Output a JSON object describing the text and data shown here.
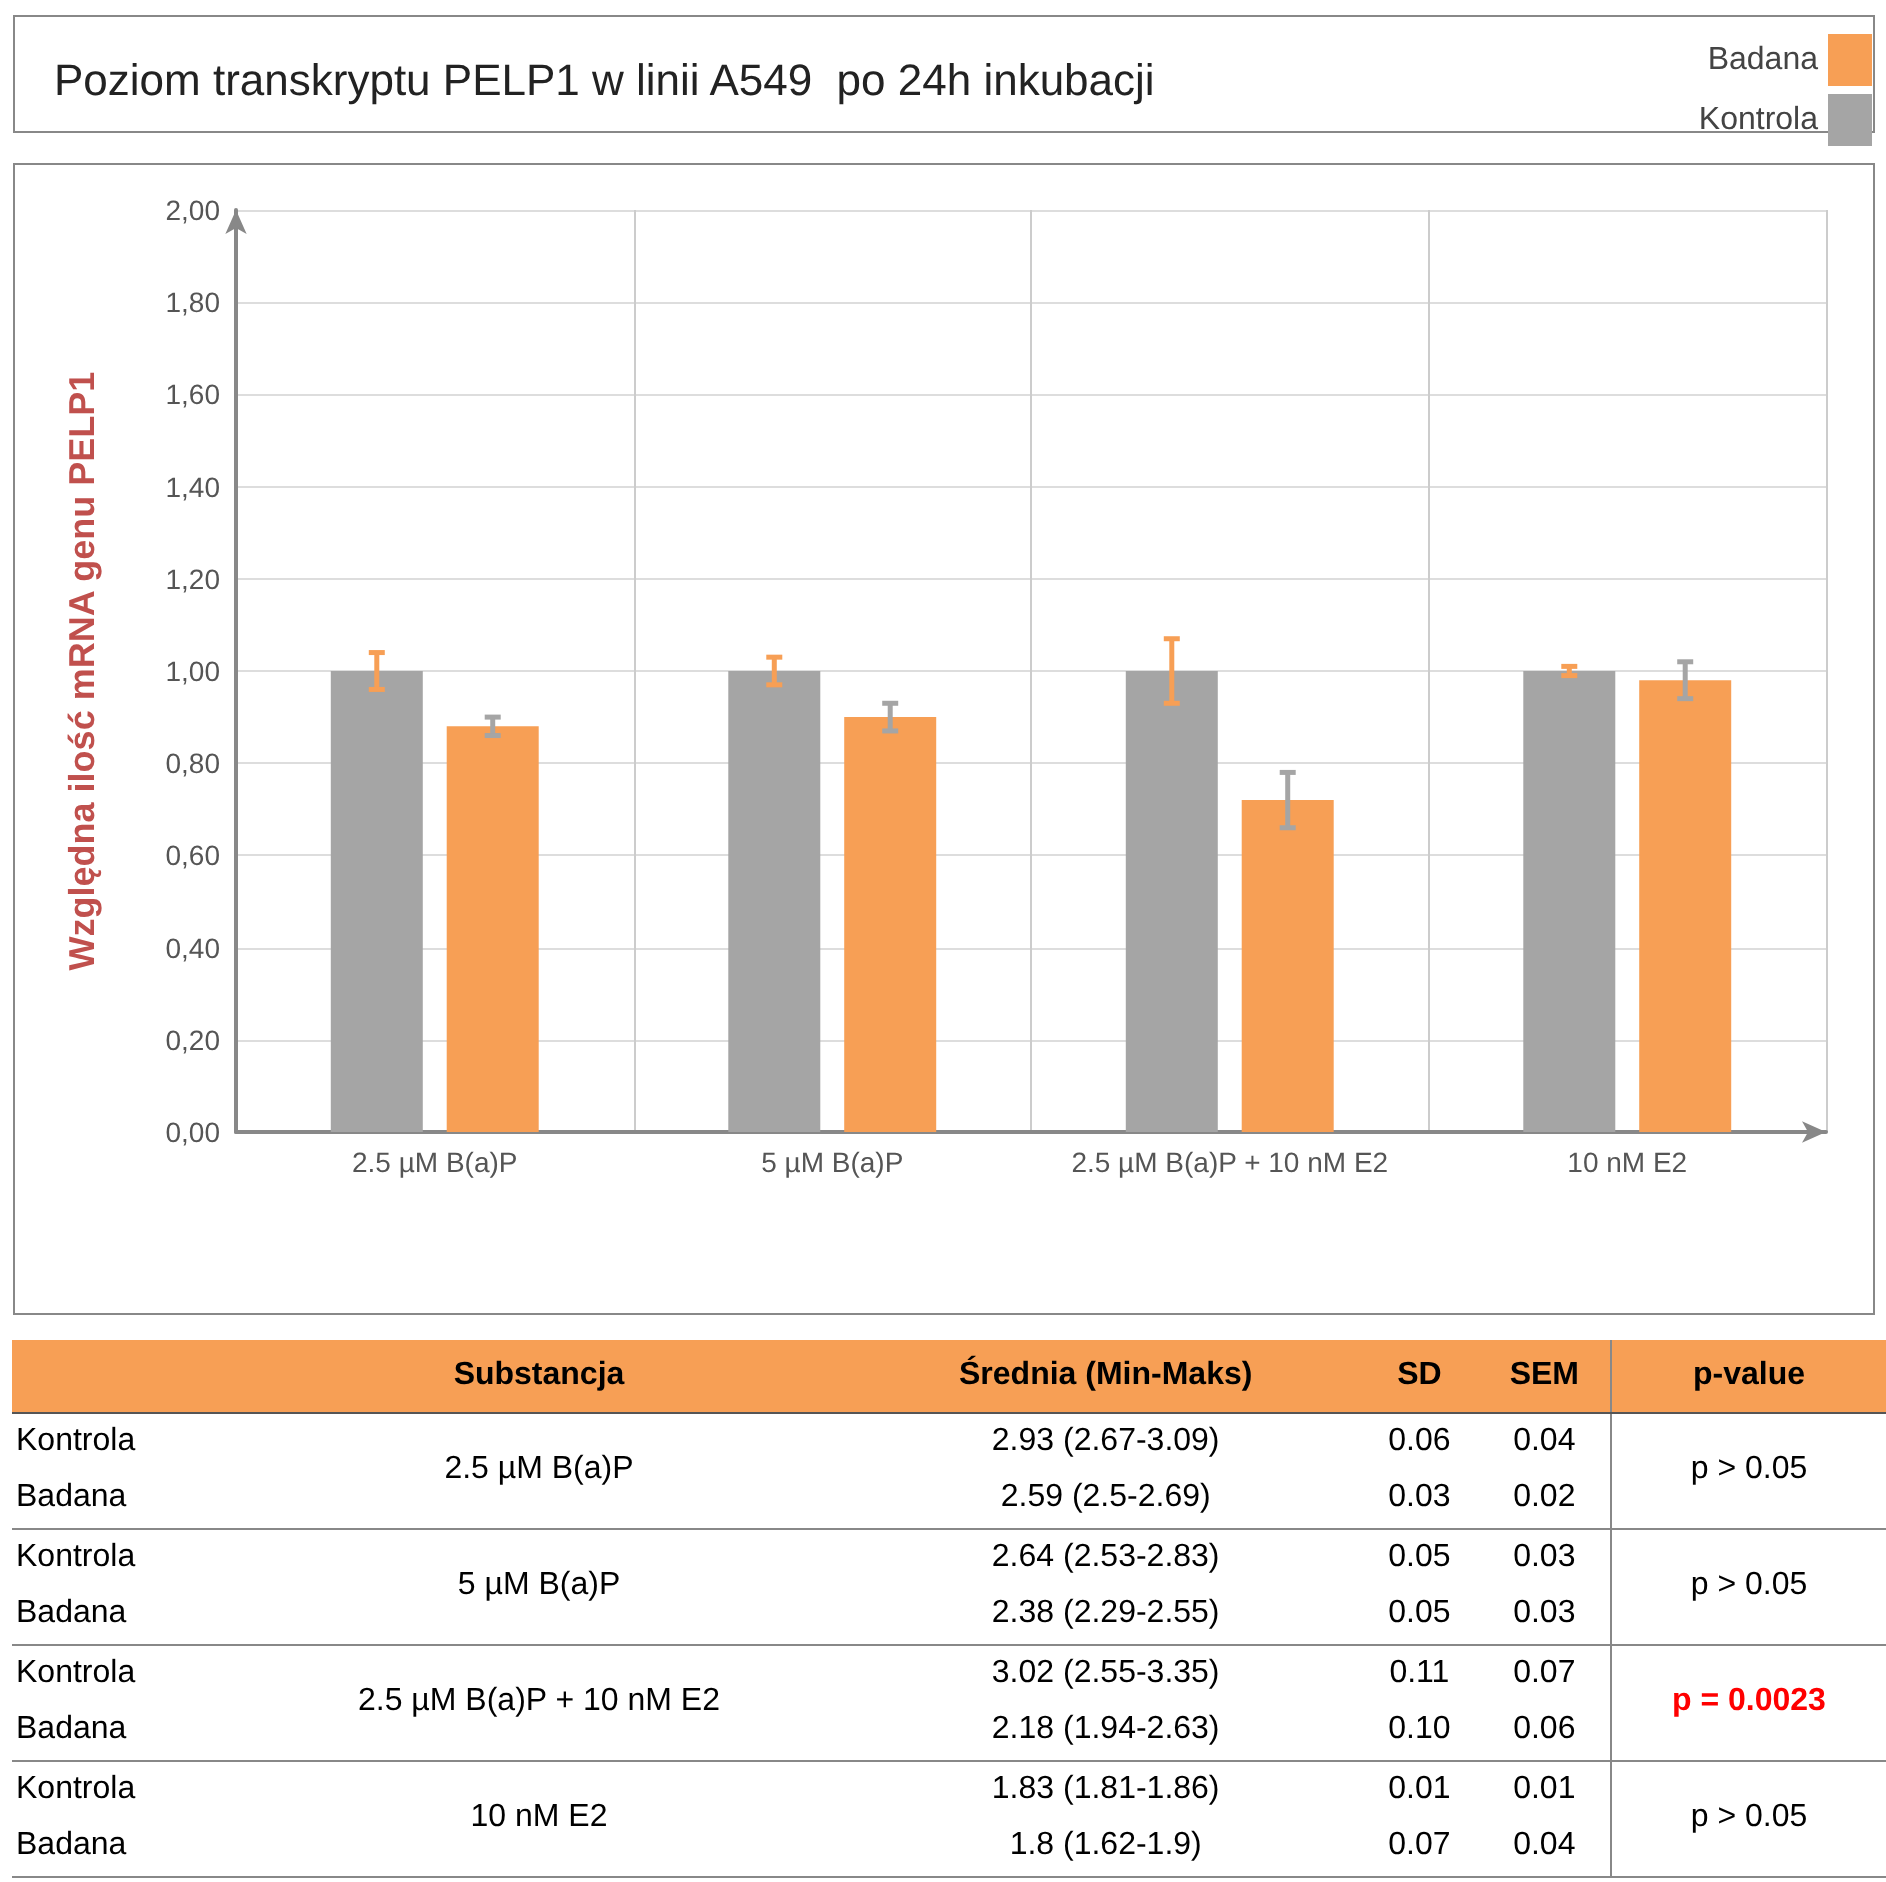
{
  "chart_data": [
    {
      "type": "bar",
      "title": "Poziom transkryptu PELP1 w linii A549  po 24h inkubacji",
      "ylabel": "Względna ilość mRNA genu PELP1",
      "categories": [
        "2.5 µM B(a)P",
        "5 µM B(a)P",
        "2.5 µM B(a)P + 10 nM E2",
        "10 nM E2"
      ],
      "series": [
        {
          "name": "Kontrola",
          "color": "#a5a5a5",
          "values": [
            1.0,
            1.0,
            1.0,
            1.0
          ],
          "errors": [
            0.04,
            0.03,
            0.07,
            0.01
          ]
        },
        {
          "name": "Badana",
          "color": "#f79f55",
          "values": [
            0.88,
            0.9,
            0.72,
            0.98
          ],
          "errors": [
            0.02,
            0.03,
            0.06,
            0.04
          ]
        }
      ],
      "ylim": [
        0,
        2
      ],
      "yticks": [
        {
          "value": 0,
          "label": "0,00"
        },
        {
          "value": 0.2,
          "label": "0,20"
        },
        {
          "value": 0.4,
          "label": "0,40"
        },
        {
          "value": 0.6,
          "label": "0,60"
        },
        {
          "value": 0.8,
          "label": "0,80"
        },
        {
          "value": 1,
          "label": "1,00"
        },
        {
          "value": 1.2,
          "label": "1,20"
        },
        {
          "value": 1.4,
          "label": "1,40"
        },
        {
          "value": 1.6,
          "label": "1,60"
        },
        {
          "value": 1.8,
          "label": "1,80"
        },
        {
          "value": 2,
          "label": "2,00"
        }
      ],
      "grid": true,
      "legend": "top right"
    },
    {
      "type": "other",
      "annotations": [
        "Substancja",
        "Średnia (Min-Maks)",
        "SD",
        "SEM",
        "p-value",
        "Kontrola",
        "2.5 µM B(a)P",
        "2.93 (2.67-3.09)",
        "0.06",
        "0.04",
        "p > 0.05",
        "Badana",
        "2.59 (2.5-2.69)",
        "0.03",
        "0.02",
        "Kontrola",
        "5 µM B(a)P",
        "2.64 (2.53-2.83)",
        "0.05",
        "0.03",
        "p > 0.05",
        "Badana",
        "2.38 (2.29-2.55)",
        "0.05",
        "0.03",
        "Kontrola",
        "2.5 µM B(a)P + 10 nM E2",
        "3.02 (2.55-3.35)",
        "0.11",
        "0.07",
        "p = 0.0023",
        "Badana",
        "2.18 (1.94-2.63)",
        "0.10",
        "0.06",
        "Kontrola",
        "10 nM E2",
        "1.83 (1.81-1.86)",
        "0.01",
        "0.01",
        "p > 0.05",
        "Badana",
        "1.8 (1.62-1.9)",
        "0.07",
        "0.04"
      ]
    }
  ]
}
